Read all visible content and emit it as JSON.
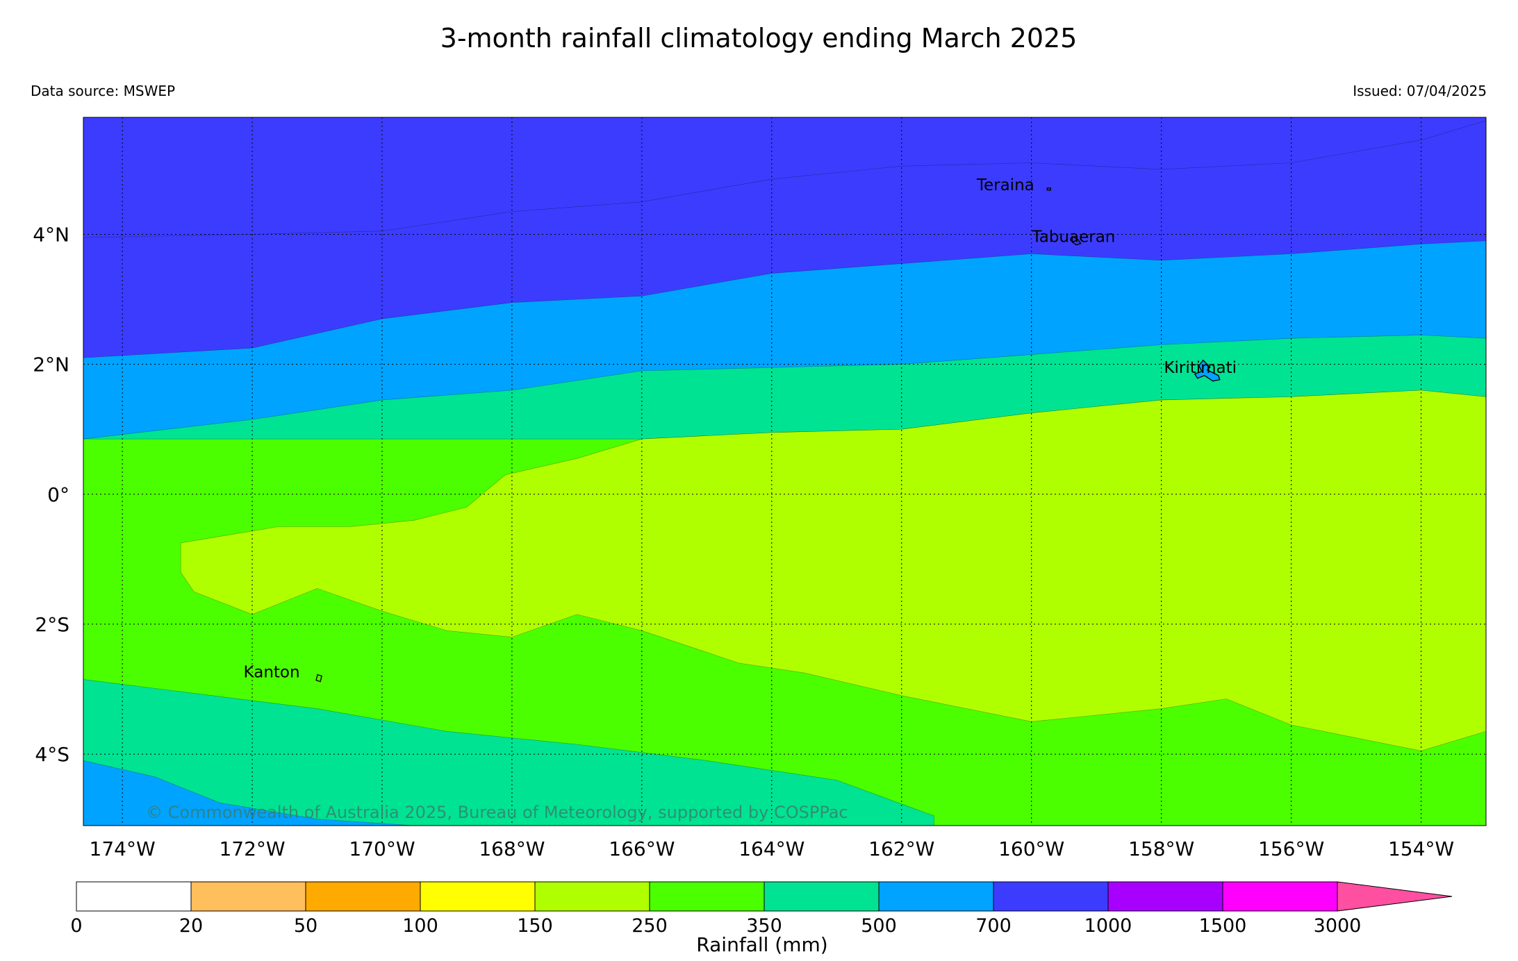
{
  "title": "3-month rainfall climatology ending March 2025",
  "data_source": "Data source: MSWEP",
  "issued": "Issued: 07/04/2025",
  "copyright": "© Commonwealth of Australia 2025, Bureau of Meteorology, supported by COSPPac",
  "map": {
    "lon_range": [
      -174.6,
      -153.0
    ],
    "lat_range": [
      -5.1,
      5.8
    ],
    "lon_ticks": [
      {
        "value": -174,
        "label": "174°W"
      },
      {
        "value": -172,
        "label": "172°W"
      },
      {
        "value": -170,
        "label": "170°W"
      },
      {
        "value": -168,
        "label": "168°W"
      },
      {
        "value": -166,
        "label": "166°W"
      },
      {
        "value": -164,
        "label": "164°W"
      },
      {
        "value": -162,
        "label": "162°W"
      },
      {
        "value": -160,
        "label": "160°W"
      },
      {
        "value": -158,
        "label": "158°W"
      },
      {
        "value": -156,
        "label": "156°W"
      },
      {
        "value": -154,
        "label": "154°W"
      }
    ],
    "lat_ticks": [
      {
        "value": 4,
        "label": "4°N"
      },
      {
        "value": 2,
        "label": "2°N"
      },
      {
        "value": 0,
        "label": "0°"
      },
      {
        "value": -2,
        "label": "2°S"
      },
      {
        "value": -4,
        "label": "4°S"
      }
    ],
    "places": [
      {
        "name": "Teraina",
        "lon": -160.4,
        "lat": 4.68
      },
      {
        "name": "Tabuaeran",
        "lon": -159.35,
        "lat": 3.88
      },
      {
        "name": "Kiritimati",
        "lon": -157.4,
        "lat": 1.87
      },
      {
        "name": "Kanton",
        "lon": -171.7,
        "lat": -2.82
      }
    ],
    "zones": [
      {
        "range": "700-1000",
        "color": "#3c3cff",
        "boundary": [
          [
            -174.6,
            3.95
          ],
          [
            -172,
            4.0
          ],
          [
            -170,
            4.05
          ],
          [
            -168,
            4.35
          ],
          [
            -166,
            4.5
          ],
          [
            -164,
            4.85
          ],
          [
            -162,
            5.05
          ],
          [
            -160,
            5.1
          ],
          [
            -158,
            5.0
          ],
          [
            -156,
            5.1
          ],
          [
            -154,
            5.45
          ],
          [
            -153,
            5.75
          ]
        ]
      },
      {
        "range": "500-700",
        "color": "#00a3ff",
        "boundary": [
          [
            -174.6,
            2.1
          ],
          [
            -172,
            2.25
          ],
          [
            -170,
            2.7
          ],
          [
            -168,
            2.95
          ],
          [
            -166,
            3.05
          ],
          [
            -164,
            3.4
          ],
          [
            -162,
            3.55
          ],
          [
            -160,
            3.7
          ],
          [
            -158,
            3.6
          ],
          [
            -156,
            3.7
          ],
          [
            -154,
            3.85
          ],
          [
            -153,
            3.9
          ]
        ]
      },
      {
        "range": "350-500",
        "color": "#00e392",
        "boundary": [
          [
            -174.6,
            0.85
          ],
          [
            -172,
            1.15
          ],
          [
            -170,
            1.45
          ],
          [
            -168,
            1.6
          ],
          [
            -166,
            1.9
          ],
          [
            -164,
            1.95
          ],
          [
            -162,
            2.0
          ],
          [
            -160,
            2.15
          ],
          [
            -158,
            2.3
          ],
          [
            -156,
            2.4
          ],
          [
            -154,
            2.45
          ],
          [
            -153,
            2.4
          ]
        ]
      },
      {
        "range": "250-350",
        "color": "#4cff00",
        "boundary": [
          [
            -174.6,
            0.85
          ],
          [
            -167,
            0.85
          ],
          [
            -166,
            0.85
          ],
          [
            -164,
            0.95
          ],
          [
            -162,
            1.0
          ],
          [
            -160,
            1.25
          ],
          [
            -158,
            1.45
          ],
          [
            -156,
            1.5
          ],
          [
            -154,
            1.6
          ],
          [
            -153,
            1.5
          ]
        ]
      },
      {
        "range": "150-250",
        "color": "#b0ff00",
        "polygon": [
          [
            -173.1,
            -0.75
          ],
          [
            -172.5,
            -0.65
          ],
          [
            -171.6,
            -0.5
          ],
          [
            -170.5,
            -0.5
          ],
          [
            -169.5,
            -0.4
          ],
          [
            -168.7,
            -0.2
          ],
          [
            -168.1,
            0.3
          ],
          [
            -167,
            0.55
          ],
          [
            -166,
            0.85
          ],
          [
            -164,
            0.95
          ],
          [
            -162,
            1.0
          ],
          [
            -160,
            1.25
          ],
          [
            -158,
            1.45
          ],
          [
            -156,
            1.5
          ],
          [
            -154,
            1.6
          ],
          [
            -153,
            1.5
          ],
          [
            -153,
            -3.65
          ],
          [
            -154,
            -3.95
          ],
          [
            -156,
            -3.55
          ],
          [
            -157,
            -3.15
          ],
          [
            -158,
            -3.3
          ],
          [
            -160,
            -3.5
          ],
          [
            -162,
            -3.1
          ],
          [
            -163.5,
            -2.75
          ],
          [
            -164.5,
            -2.6
          ],
          [
            -166,
            -2.1
          ],
          [
            -167,
            -1.85
          ],
          [
            -168,
            -2.2
          ],
          [
            -169,
            -2.1
          ],
          [
            -170,
            -1.8
          ],
          [
            -171,
            -1.45
          ],
          [
            -172,
            -1.85
          ],
          [
            -172.9,
            -1.5
          ],
          [
            -173.1,
            -1.2
          ]
        ]
      },
      {
        "range": "350-500",
        "color": "#00e392",
        "polygon": [
          [
            -174.6,
            -2.85
          ],
          [
            -173,
            -3.05
          ],
          [
            -171,
            -3.3
          ],
          [
            -169,
            -3.65
          ],
          [
            -167,
            -3.85
          ],
          [
            -165,
            -4.1
          ],
          [
            -163,
            -4.4
          ],
          [
            -161.5,
            -4.95
          ],
          [
            -161.5,
            -5.1
          ],
          [
            -174.6,
            -5.1
          ]
        ]
      },
      {
        "range": "500-700",
        "color": "#00a3ff",
        "polygon": [
          [
            -174.6,
            -4.1
          ],
          [
            -173.5,
            -4.35
          ],
          [
            -172.5,
            -4.75
          ],
          [
            -171,
            -5.0
          ],
          [
            -169.5,
            -5.1
          ],
          [
            -174.6,
            -5.1
          ]
        ]
      }
    ]
  },
  "colorbar": {
    "label": "Rainfall (mm)",
    "ticks": [
      "0",
      "20",
      "50",
      "100",
      "150",
      "250",
      "350",
      "500",
      "700",
      "1000",
      "1500",
      "3000"
    ],
    "colors": [
      "#ffffff",
      "#ffbf5c",
      "#ffaa00",
      "#ffff00",
      "#b0ff00",
      "#4cff00",
      "#00e392",
      "#00a3ff",
      "#3c3cff",
      "#a800ff",
      "#ff00ff"
    ],
    "extend_color": "#ff4fa0"
  }
}
